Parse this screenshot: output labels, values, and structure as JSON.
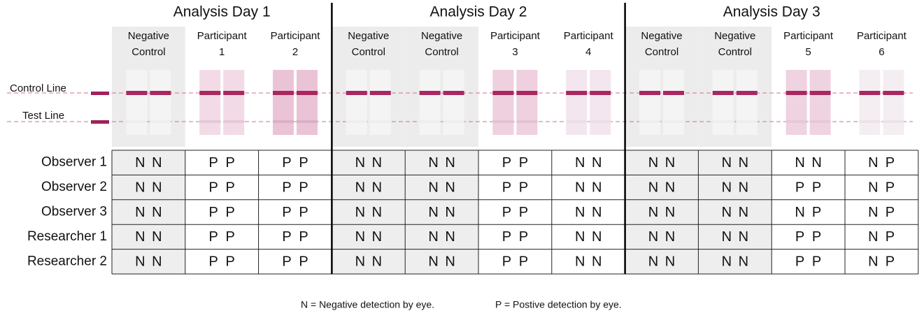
{
  "days": [
    "Analysis Day 1",
    "Analysis Day 2",
    "Analysis Day 3"
  ],
  "columns": [
    {
      "line1": "Negative",
      "line2": "Control"
    },
    {
      "line1": "Participant",
      "line2": "1"
    },
    {
      "line1": "Participant",
      "line2": "2"
    },
    {
      "line1": "Negative",
      "line2": "Control"
    },
    {
      "line1": "Negative",
      "line2": "Control"
    },
    {
      "line1": "Participant",
      "line2": "3"
    },
    {
      "line1": "Participant",
      "line2": "4"
    },
    {
      "line1": "Negative",
      "line2": "Control"
    },
    {
      "line1": "Negative",
      "line2": "Control"
    },
    {
      "line1": "Participant",
      "line2": "5"
    },
    {
      "line1": "Participant",
      "line2": "6"
    }
  ],
  "lines": {
    "control": "Control Line",
    "test": "Test Line"
  },
  "rows": [
    {
      "label": "Observer 1",
      "cells": [
        [
          "N",
          "N"
        ],
        [
          "P",
          "P"
        ],
        [
          "P",
          "P"
        ],
        [
          "N",
          "N"
        ],
        [
          "N",
          "N"
        ],
        [
          "P",
          "P"
        ],
        [
          "N",
          "N"
        ],
        [
          "N",
          "N"
        ],
        [
          "N",
          "N"
        ],
        [
          "N",
          "N"
        ],
        [
          "N",
          "P"
        ]
      ]
    },
    {
      "label": "Observer 2",
      "cells": [
        [
          "N",
          "N"
        ],
        [
          "P",
          "P"
        ],
        [
          "P",
          "P"
        ],
        [
          "N",
          "N"
        ],
        [
          "N",
          "N"
        ],
        [
          "P",
          "P"
        ],
        [
          "N",
          "N"
        ],
        [
          "N",
          "N"
        ],
        [
          "N",
          "N"
        ],
        [
          "P",
          "P"
        ],
        [
          "N",
          "P"
        ]
      ]
    },
    {
      "label": "Observer 3",
      "cells": [
        [
          "N",
          "N"
        ],
        [
          "P",
          "P"
        ],
        [
          "P",
          "P"
        ],
        [
          "N",
          "N"
        ],
        [
          "N",
          "N"
        ],
        [
          "P",
          "P"
        ],
        [
          "N",
          "N"
        ],
        [
          "N",
          "N"
        ],
        [
          "N",
          "N"
        ],
        [
          "N",
          "P"
        ],
        [
          "N",
          "P"
        ]
      ]
    },
    {
      "label": "Researcher 1",
      "cells": [
        [
          "N",
          "N"
        ],
        [
          "P",
          "P"
        ],
        [
          "P",
          "P"
        ],
        [
          "N",
          "N"
        ],
        [
          "N",
          "N"
        ],
        [
          "P",
          "P"
        ],
        [
          "N",
          "N"
        ],
        [
          "N",
          "N"
        ],
        [
          "N",
          "N"
        ],
        [
          "P",
          "P"
        ],
        [
          "N",
          "P"
        ]
      ]
    },
    {
      "label": "Researcher 2",
      "cells": [
        [
          "N",
          "N"
        ],
        [
          "P",
          "P"
        ],
        [
          "P",
          "P"
        ],
        [
          "N",
          "N"
        ],
        [
          "N",
          "N"
        ],
        [
          "P",
          "P"
        ],
        [
          "N",
          "N"
        ],
        [
          "N",
          "N"
        ],
        [
          "N",
          "N"
        ],
        [
          "P",
          "P"
        ],
        [
          "N",
          "P"
        ]
      ]
    }
  ],
  "legend": [
    "N = Negative detection by eye.",
    "P = Postive detection by eye."
  ]
}
